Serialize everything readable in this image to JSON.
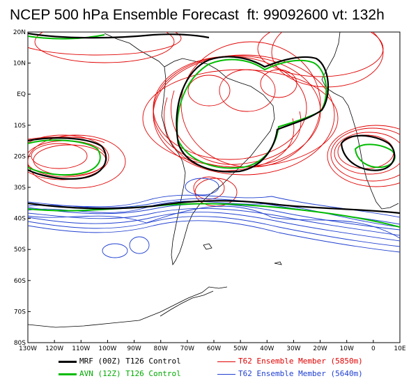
{
  "title": "NCEP 500 hPa Ensemble Forecast  ft: 99092600 vt: 132h",
  "map": {
    "lon_range": [
      -130,
      10
    ],
    "lat_range": [
      -80,
      20
    ],
    "lon_ticks": [
      "130W",
      "120W",
      "110W",
      "100W",
      "90W",
      "80W",
      "70W",
      "60W",
      "50W",
      "40W",
      "30W",
      "20W",
      "10W",
      "0",
      "10E"
    ],
    "lat_ticks": [
      "20N",
      "10N",
      "EQ",
      "10S",
      "20S",
      "30S",
      "40S",
      "50S",
      "60S",
      "70S",
      "80S"
    ]
  },
  "legend": {
    "mrf": {
      "label": "MRF (00Z) T126 Control",
      "color": "#000000"
    },
    "avn": {
      "label": "AVN (12Z) T126 Control",
      "color": "#00bb00"
    },
    "red_members": {
      "label": "T62 Ensemble Member (5850m)",
      "color": "#e00000"
    },
    "blue_members": {
      "label": "T62 Ensemble Member (5640m)",
      "color": "#1f3fd0"
    }
  }
}
